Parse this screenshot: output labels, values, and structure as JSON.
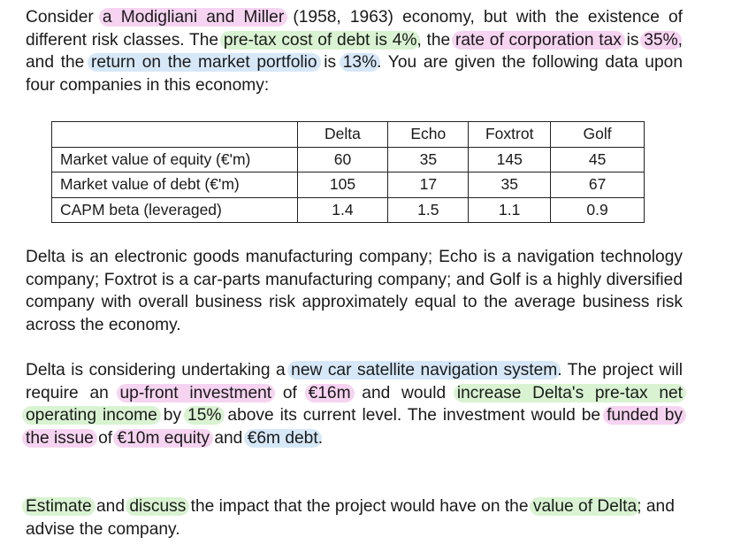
{
  "intro": {
    "t1": "Consider ",
    "h1": "a Modigliani and Miller",
    "t2": " (1958, 1963) economy, but with the existence of different risk classes. The ",
    "h2": "pre-tax cost of debt is 4%",
    "t3": ", the ",
    "h3": "rate of corporation tax",
    "t4": " is ",
    "h4": "35%",
    "t5": ", and the ",
    "h5": "return on the market portfolio",
    "t6": " is ",
    "h6": "13%",
    "t7": ". You are given the following data upon four companies in this economy:"
  },
  "table": {
    "columns": [
      "",
      "Delta",
      "Echo",
      "Foxtrot",
      "Golf"
    ],
    "rows": [
      {
        "label": "Market value of equity (€'m)",
        "values": [
          "60",
          "35",
          "145",
          "45"
        ]
      },
      {
        "label": "Market value of debt (€'m)",
        "values": [
          "105",
          "17",
          "35",
          "67"
        ]
      },
      {
        "label": "CAPM beta (leveraged)",
        "values": [
          "1.4",
          "1.5",
          "1.1",
          "0.9"
        ]
      }
    ]
  },
  "companies_paragraph": "Delta is an electronic goods manufacturing company; Echo is a navigation technology company; Foxtrot is a car-parts manufacturing company; and Golf is a highly diversified company with overall business risk approximately equal to the average business risk across the economy.",
  "project": {
    "t1": "Delta is considering undertaking a ",
    "h1": "new car satellite navigation system",
    "t2": ". The project will require an ",
    "h2": "up-front investment",
    "t3": " of ",
    "h3": "€16m",
    "t4": " and would ",
    "h4": "increase Delta's pre-tax net operating income",
    "t5": " by ",
    "h5": "15%",
    "t6": " above its current level. The investment would be ",
    "h6": "funded by the issue",
    "t7": " of ",
    "h7": "€10m equity",
    "t8": " and ",
    "h8": "€6m debt",
    "t9": "."
  },
  "task": {
    "h1": "Estimate",
    "t1": " and ",
    "h2": "discuss",
    "t2": " the impact that the project would have on the ",
    "h3": "value of Delta",
    "t3": "; and advise the company."
  },
  "colors": {
    "pink": "#f6d4f1",
    "green": "#d9f3d2",
    "blue": "#d6e8f8"
  }
}
